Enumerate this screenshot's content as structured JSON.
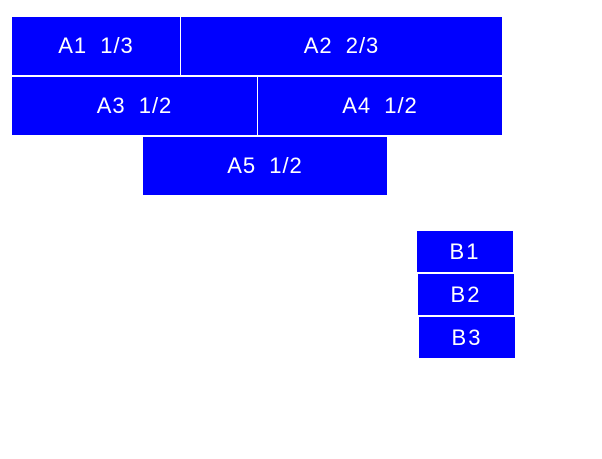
{
  "group_a": [
    "A1 1/3",
    "A2 2/3",
    "A3 1/2",
    "A4 1/2",
    "A5 1/2"
  ],
  "group_b": [
    "B1",
    "B2",
    "B3"
  ],
  "colors": {
    "box": "#0000ff",
    "text": "#ffffff",
    "background": "#ffffff"
  }
}
